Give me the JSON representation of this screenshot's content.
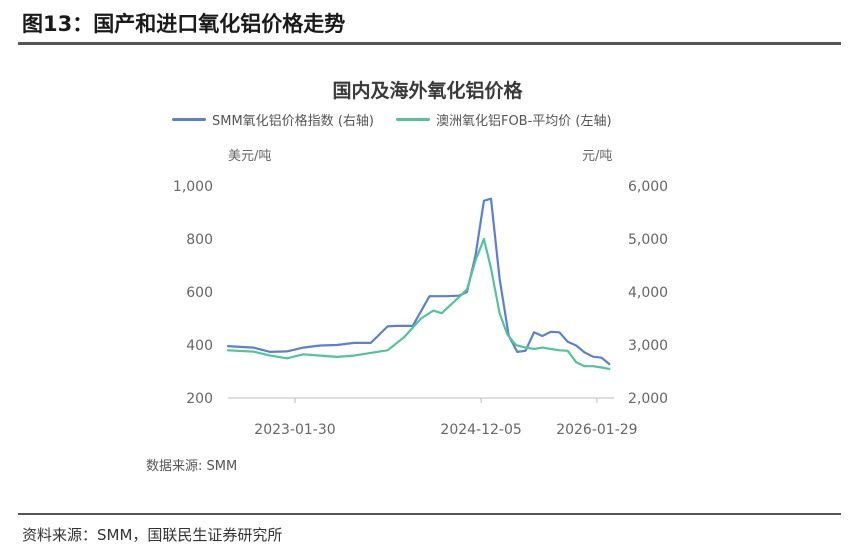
{
  "figure": {
    "title": "图13：国产和进口氧化铝价格走势",
    "source": "资料来源：SMM，国联民生证券研究所"
  },
  "chart_data": {
    "type": "line",
    "title": "国内及海外氧化铝价格",
    "left_axis_unit": "美元/吨",
    "right_axis_unit": "元/吨",
    "left_ylim": [
      200,
      1000
    ],
    "left_ticks": [
      "1,000",
      "800",
      "600",
      "400",
      "200"
    ],
    "left_tick_values": [
      1000,
      800,
      600,
      400,
      200
    ],
    "right_ylim": [
      2000,
      6000
    ],
    "right_ticks": [
      "6,000",
      "5,000",
      "4,000",
      "3,000",
      "2,000"
    ],
    "right_tick_values": [
      6000,
      5000,
      4000,
      3000,
      2000
    ],
    "x_range": [
      "2022-06-01",
      "2026-04-01"
    ],
    "x_ticks": [
      "2023-01-30",
      "2024-12-05",
      "2026-01-29"
    ],
    "legend_position": "top",
    "source": "数据来源: SMM",
    "series": [
      {
        "name": "SMM氧化铝价格指数 (右轴)",
        "axis": "right",
        "color": "#5b7fd6",
        "x": [
          "2022-06-01",
          "2022-09-01",
          "2022-11-01",
          "2023-01-01",
          "2023-03-01",
          "2023-05-01",
          "2023-07-01",
          "2023-09-01",
          "2023-11-01",
          "2024-01-01",
          "2024-02-01",
          "2024-04-01",
          "2024-06-01",
          "2024-08-01",
          "2024-09-15",
          "2024-10-15",
          "2024-11-15",
          "2024-12-15",
          "2025-01-10",
          "2025-02-10",
          "2025-03-15",
          "2025-04-15",
          "2025-05-15",
          "2025-06-15",
          "2025-07-15",
          "2025-08-15",
          "2025-09-15",
          "2025-10-15",
          "2025-11-15",
          "2025-12-15",
          "2026-01-15",
          "2026-02-15",
          "2026-03-15"
        ],
        "values": [
          2980,
          2950,
          2870,
          2880,
          2950,
          2990,
          3000,
          3040,
          3040,
          3350,
          3360,
          3360,
          3920,
          3920,
          3930,
          4000,
          4700,
          5720,
          5760,
          4250,
          3180,
          2870,
          2890,
          3240,
          3170,
          3250,
          3240,
          3060,
          2990,
          2860,
          2780,
          2760,
          2640
        ]
      },
      {
        "name": "澳洲氧化铝FOB-平均价 (左轴)",
        "axis": "left",
        "color": "#4fc598",
        "x": [
          "2022-06-01",
          "2022-09-01",
          "2022-11-01",
          "2023-01-01",
          "2023-03-01",
          "2023-05-01",
          "2023-07-01",
          "2023-09-01",
          "2023-11-01",
          "2024-01-01",
          "2024-03-01",
          "2024-05-01",
          "2024-06-15",
          "2024-07-15",
          "2024-08-15",
          "2024-09-15",
          "2024-10-15",
          "2024-11-15",
          "2024-12-15",
          "2025-01-10",
          "2025-02-10",
          "2025-03-10",
          "2025-04-10",
          "2025-05-15",
          "2025-06-15",
          "2025-07-15",
          "2025-08-15",
          "2025-09-15",
          "2025-10-15",
          "2025-11-15",
          "2025-12-15",
          "2026-01-15",
          "2026-02-15",
          "2026-03-15"
        ],
        "values": [
          380,
          375,
          360,
          350,
          365,
          360,
          355,
          360,
          370,
          380,
          430,
          500,
          530,
          520,
          550,
          580,
          610,
          720,
          800,
          690,
          520,
          440,
          400,
          390,
          385,
          390,
          385,
          380,
          378,
          335,
          320,
          320,
          315,
          310
        ]
      }
    ]
  }
}
